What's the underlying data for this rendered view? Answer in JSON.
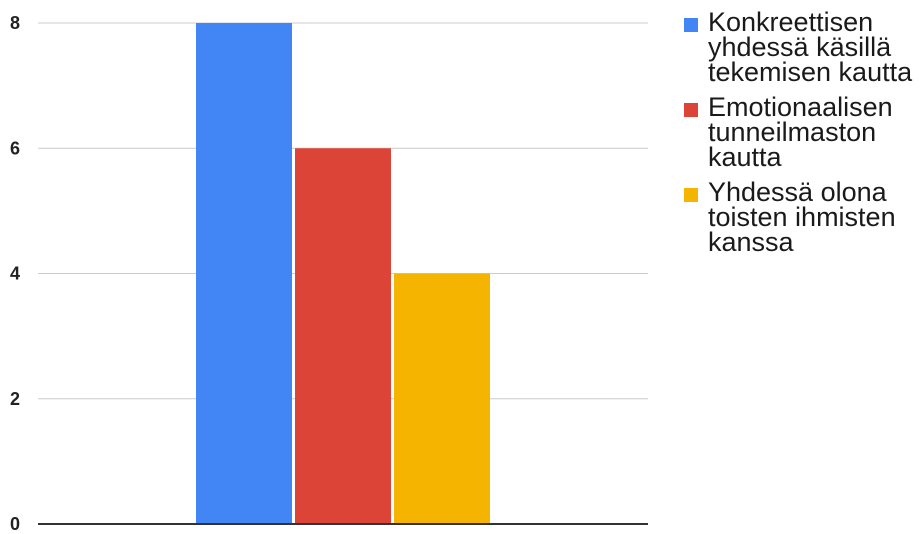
{
  "chart_data": {
    "type": "bar",
    "categories": [
      ""
    ],
    "series": [
      {
        "name": "Konkreettisen yhdessä käsillä tekemisen kautta",
        "values": [
          8
        ],
        "color": "#4285f4"
      },
      {
        "name": "Emotionaalisen tunneilmaston kautta",
        "values": [
          6
        ],
        "color": "#db4437"
      },
      {
        "name": "Yhdessä olona toisten ihmisten kanssa",
        "values": [
          4
        ],
        "color": "#f4b400"
      }
    ],
    "ylim": [
      0,
      8
    ],
    "yticks": [
      "0",
      "2",
      "4",
      "6",
      "8"
    ],
    "grid": true,
    "legend": "right",
    "title": "",
    "xlabel": "",
    "ylabel": ""
  },
  "legend": {
    "items": [
      {
        "label": "Konkreettisen yhdessä käsillä tekemisen kautta",
        "color": "#4285f4"
      },
      {
        "label": "Emotionaalisen tunneilmaston kautta",
        "color": "#db4437"
      },
      {
        "label": "Yhdessä olona toisten ihmisten kanssa",
        "color": "#f4b400"
      }
    ]
  }
}
